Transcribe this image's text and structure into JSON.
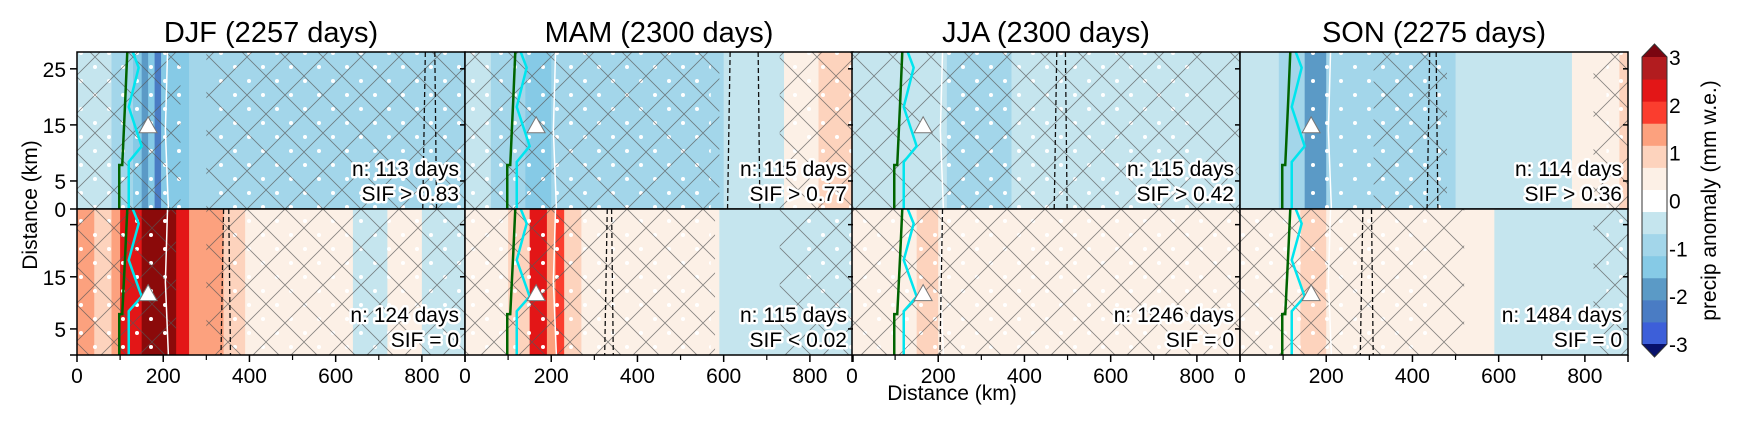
{
  "chart_data": {
    "type": "heatmap",
    "description": "Composite precipitation anomaly cross-sections by season, upper row = high SIF days, lower row = low SIF days",
    "xlabel": "Distance (km)",
    "ylabel": "Distance (km)",
    "xlim": [
      0,
      900
    ],
    "x_ticks": [
      0,
      200,
      400,
      600,
      800
    ],
    "x_minor_ticks": [
      100,
      300,
      500,
      700
    ],
    "y_ticks_upper": [
      0,
      5,
      15,
      25
    ],
    "y_ticks_lower": [
      5,
      15
    ],
    "ylim_upper": [
      0,
      28
    ],
    "ylim_lower": [
      28,
      0
    ],
    "colorbar": {
      "label": "precip anomaly (mm w.e.)",
      "ticks": [
        3,
        2,
        1,
        0,
        -1,
        -2,
        -3
      ],
      "levels": [
        -3,
        -2.5,
        -2,
        -1.5,
        -1,
        -0.5,
        0,
        0.5,
        1,
        1.5,
        2,
        2.5,
        3
      ],
      "colors": [
        "#3d5fd9",
        "#4a7cc4",
        "#5b9ac6",
        "#86cae6",
        "#a3d6ea",
        "#c5e5ee",
        "#ffffff",
        "#fcf0e6",
        "#fdd3bd",
        "#fca17e",
        "#fb3d2e",
        "#e31617",
        "#b21c1f"
      ],
      "extend_min_color": "#08116b",
      "extend_max_color": "#7a0510"
    },
    "panels": [
      {
        "season": "DJF",
        "title": "DJF (2257 days)",
        "upper": {
          "n_label": "n: 113 days",
          "sif_label": "SIF > 0.83",
          "bands": [
            [
              0,
              80,
              -0.5
            ],
            [
              80,
              130,
              -1
            ],
            [
              130,
              150,
              -1.5
            ],
            [
              150,
              165,
              -2
            ],
            [
              165,
              180,
              -1.5
            ],
            [
              180,
              195,
              -2.5
            ],
            [
              195,
              210,
              -1.5
            ],
            [
              210,
              260,
              -1.5
            ],
            [
              260,
              900,
              -1
            ]
          ],
          "hatch": [
            [
              0,
              240
            ],
            [
              300,
              900
            ]
          ],
          "stipple": [
            [
              0,
              250
            ],
            [
              310,
              900
            ]
          ],
          "dashed_x": [
            808,
            830
          ]
        },
        "lower": {
          "n_label": "n: 124 days",
          "sif_label": "SIF = 0",
          "bands": [
            [
              0,
              40,
              1.5
            ],
            [
              40,
              80,
              1
            ],
            [
              80,
              100,
              1.5
            ],
            [
              100,
              120,
              2.5
            ],
            [
              120,
              150,
              2.5
            ],
            [
              150,
              230,
              3
            ],
            [
              230,
              260,
              2.5
            ],
            [
              260,
              340,
              1.5
            ],
            [
              340,
              390,
              1
            ],
            [
              390,
              640,
              0.5
            ],
            [
              640,
              720,
              -0.5
            ],
            [
              720,
              800,
              0.5
            ],
            [
              800,
              900,
              -0.5
            ]
          ],
          "hatch": [
            [
              0,
              230
            ],
            [
              300,
              900
            ]
          ],
          "stipple": [
            [
              0,
              220
            ],
            [
              340,
              900
            ]
          ],
          "dashed_x": [
            340,
            352
          ]
        }
      },
      {
        "season": "MAM",
        "title": "MAM (2300 days)",
        "upper": {
          "n_label": "n: 115 days",
          "sif_label": "SIF > 0.77",
          "bands": [
            [
              0,
              60,
              -0.5
            ],
            [
              60,
              140,
              -1
            ],
            [
              140,
              180,
              -1.5
            ],
            [
              180,
              200,
              -1.5
            ],
            [
              200,
              600,
              -1
            ],
            [
              600,
              740,
              -0.5
            ],
            [
              740,
              820,
              0.5
            ],
            [
              820,
              900,
              1
            ]
          ],
          "hatch": [
            [
              0,
              590
            ],
            [
              730,
              900
            ]
          ],
          "stipple": [
            [
              0,
              570
            ],
            [
              760,
              900
            ]
          ],
          "dashed_x": [
            615,
            680
          ]
        },
        "lower": {
          "n_label": "n: 115 days",
          "sif_label": "SIF < 0.02",
          "bands": [
            [
              0,
              100,
              0.5
            ],
            [
              100,
              150,
              1
            ],
            [
              150,
              190,
              2.5
            ],
            [
              190,
              210,
              1.5
            ],
            [
              210,
              230,
              2
            ],
            [
              230,
              270,
              1
            ],
            [
              270,
              590,
              0.5
            ],
            [
              590,
              900,
              -0.5
            ]
          ],
          "hatch": [
            [
              0,
              580
            ],
            [
              730,
              900
            ]
          ],
          "stipple": [
            [
              0,
              570
            ],
            [
              780,
              900
            ]
          ],
          "dashed_x": [
            330,
            340
          ]
        }
      },
      {
        "season": "JJA",
        "title": "JJA (2300 days)",
        "upper": {
          "n_label": "n: 115 days",
          "sif_label": "SIF > 0.42",
          "bands": [
            [
              0,
              140,
              -0.5
            ],
            [
              140,
              220,
              -0.5
            ],
            [
              220,
              370,
              -1
            ],
            [
              370,
              480,
              -0.5
            ],
            [
              480,
              900,
              -0.5
            ]
          ],
          "hatch": [
            [
              0,
              900
            ]
          ],
          "stipple": [
            [
              220,
              790
            ]
          ],
          "dashed_x": [
            475,
            495
          ]
        },
        "lower": {
          "n_label": "n: 1246 days",
          "sif_label": "SIF = 0",
          "bands": [
            [
              0,
              150,
              0.5
            ],
            [
              150,
              200,
              1
            ],
            [
              200,
              900,
              0.5
            ]
          ],
          "hatch": [
            [
              0,
              900
            ]
          ],
          "stipple": [
            [
              0,
              900
            ]
          ],
          "dashed_x": [
            210
          ]
        }
      },
      {
        "season": "SON",
        "title": "SON (2275 days)",
        "upper": {
          "n_label": "n: 114 days",
          "sif_label": "SIF > 0.36",
          "bands": [
            [
              0,
              90,
              -0.5
            ],
            [
              90,
              150,
              -1
            ],
            [
              150,
              200,
              -2
            ],
            [
              200,
              500,
              -1
            ],
            [
              500,
              770,
              -0.5
            ],
            [
              770,
              880,
              0.5
            ],
            [
              880,
              900,
              1
            ]
          ],
          "hatch": [
            [
              310,
              480
            ],
            [
              820,
              900
            ]
          ],
          "stipple": [
            [
              150,
              480
            ],
            [
              850,
              900
            ]
          ],
          "dashed_x": [
            440,
            455
          ]
        },
        "lower": {
          "n_label": "n: 1484 days",
          "sif_label": "SIF = 0",
          "bands": [
            [
              0,
              140,
              0.5
            ],
            [
              140,
              200,
              1
            ],
            [
              200,
              590,
              0.5
            ],
            [
              590,
              900,
              -0.5
            ]
          ],
          "hatch": [
            [
              0,
              520
            ],
            [
              820,
              900
            ]
          ],
          "stipple": [
            [
              0,
              450
            ],
            [
              850,
              900
            ]
          ],
          "dashed_x": [
            285,
            305
          ]
        }
      }
    ]
  }
}
